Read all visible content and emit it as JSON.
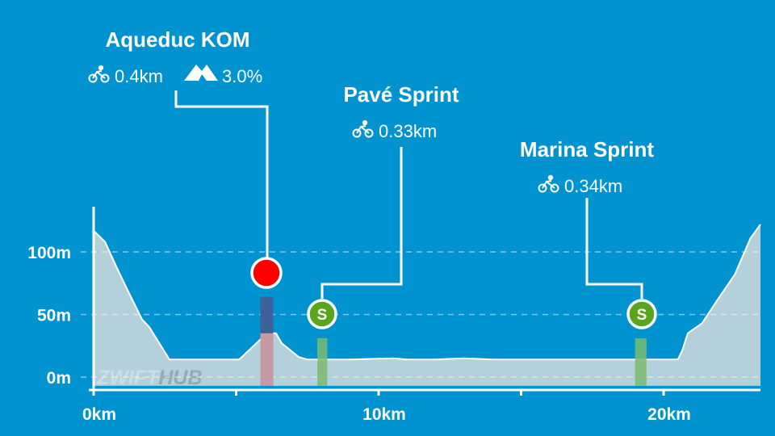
{
  "chart_data": {
    "type": "area",
    "xlabel": "",
    "ylabel": "",
    "xlim": [
      0,
      23.4
    ],
    "ylim": [
      -7,
      130
    ],
    "x_ticks": [
      {
        "v": 0,
        "label": "0km"
      },
      {
        "v": 10,
        "label": "10km"
      },
      {
        "v": 20,
        "label": "20km"
      }
    ],
    "y_ticks": [
      {
        "v": 0,
        "label": "0m"
      },
      {
        "v": 50,
        "label": "50m"
      },
      {
        "v": 100,
        "label": "100m"
      }
    ],
    "grid": "horizontal dashed",
    "profile_km": [
      0,
      0.4,
      0.8,
      1.2,
      1.7,
      1.95,
      2.66,
      4,
      5.1,
      5.2,
      5.8,
      6.07,
      6.4,
      6.6,
      7.2,
      7.5,
      9,
      10.5,
      11,
      12,
      13,
      14,
      15,
      17,
      19,
      20.5,
      20.65,
      20.85,
      21.35,
      21.9,
      22.5,
      23.05,
      23.4
    ],
    "profile_m": [
      117,
      108,
      88,
      69,
      46,
      40,
      14,
      14,
      14,
      16,
      29,
      35,
      35,
      27,
      16,
      14,
      14,
      15,
      14,
      14,
      15,
      14,
      14,
      14,
      14,
      14,
      21,
      35,
      43,
      62,
      82,
      111,
      122
    ],
    "segments": [
      {
        "name": "Aqueduc KOM",
        "type": "kom",
        "start": 5.85,
        "end": 6.3,
        "length": "0.4km",
        "grade": "3.0%",
        "color": "#ff0000",
        "bar_color": "#3f5f96",
        "bar_low_color": "#c59aa3"
      },
      {
        "name": "Pavé Sprint",
        "type": "sprint",
        "start": 7.85,
        "end": 8.2,
        "length": "0.33km",
        "color": "#5aa51e",
        "bar_color": "#7bbb6e",
        "badge": "S"
      },
      {
        "name": "Marina Sprint",
        "type": "sprint",
        "start": 19.0,
        "end": 19.4,
        "length": "0.34km",
        "color": "#5aa51e",
        "bar_color": "#7bbb6e",
        "badge": "S"
      }
    ],
    "area_color": "#b4d0db"
  },
  "watermark": {
    "left": "ZWIFT",
    "right": "HUB"
  }
}
